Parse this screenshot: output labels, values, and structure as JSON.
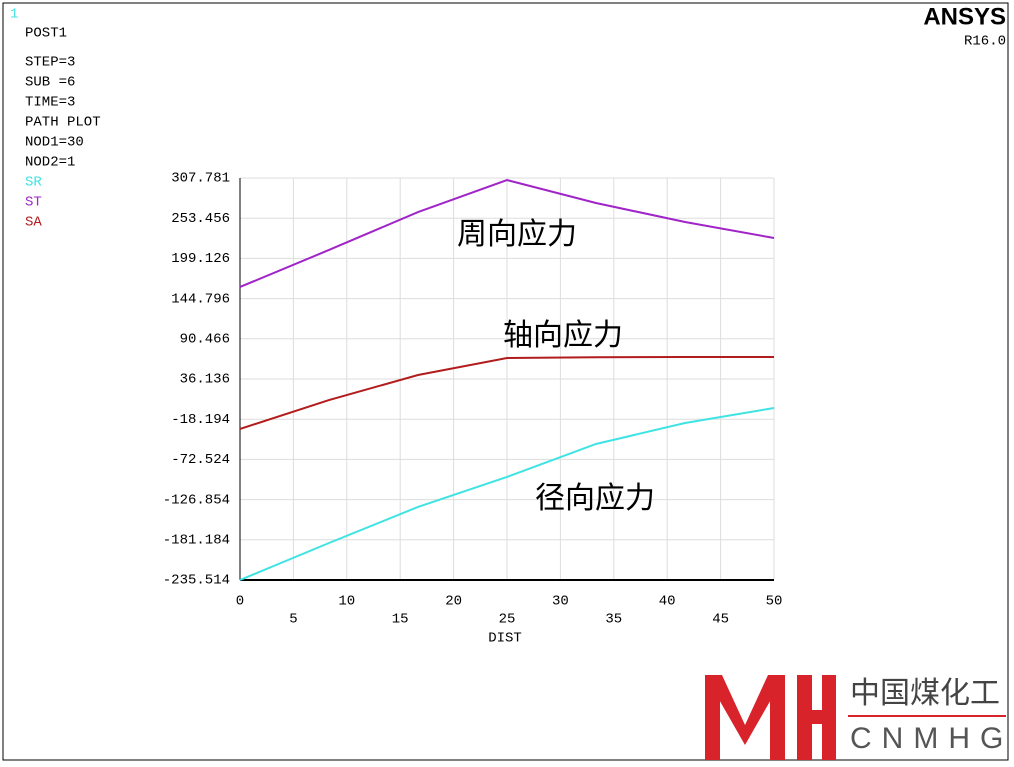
{
  "window_number": "1",
  "header_lines": [
    "POST1",
    "STEP=3",
    "SUB =6",
    "TIME=3",
    "PATH PLOT",
    "NOD1=30",
    "NOD2=1"
  ],
  "logo": "ANSYS",
  "version": "R16.0",
  "watermark": {
    "cn": "中国煤化工",
    "en": "CNMHG"
  },
  "chart_data": {
    "type": "line",
    "xlabel": "DIST",
    "x": [
      0,
      8.33,
      16.67,
      25,
      33.33,
      41.67,
      50
    ],
    "series": [
      {
        "name": "SR",
        "color": "#3fe3e3",
        "values": [
          -235.514,
          -185.5,
          -136.8,
          -96.3,
          -51.7,
          -23.3,
          -3.1
        ]
      },
      {
        "name": "ST",
        "color": "#a024c8",
        "values": [
          160.5,
          210.5,
          261.8,
          305.0,
          274.0,
          248.3,
          226.7
        ]
      },
      {
        "name": "SA",
        "color": "#b21c1c",
        "values": [
          -31.4,
          7.7,
          41.5,
          64.5,
          65.5,
          65.9,
          65.9
        ]
      }
    ],
    "annotations": [
      "周向应力",
      "轴向应力",
      "径向应力"
    ],
    "xlim": [
      0,
      50
    ],
    "ylim": [
      -235.514,
      307.781
    ],
    "xticks": [
      0,
      5,
      10,
      15,
      20,
      25,
      30,
      35,
      40,
      45,
      50
    ],
    "yticks": [
      307.781,
      253.456,
      199.126,
      144.796,
      90.466,
      36.136,
      -18.194,
      -72.524,
      -126.854,
      -181.184,
      -235.514
    ],
    "grid": true
  }
}
